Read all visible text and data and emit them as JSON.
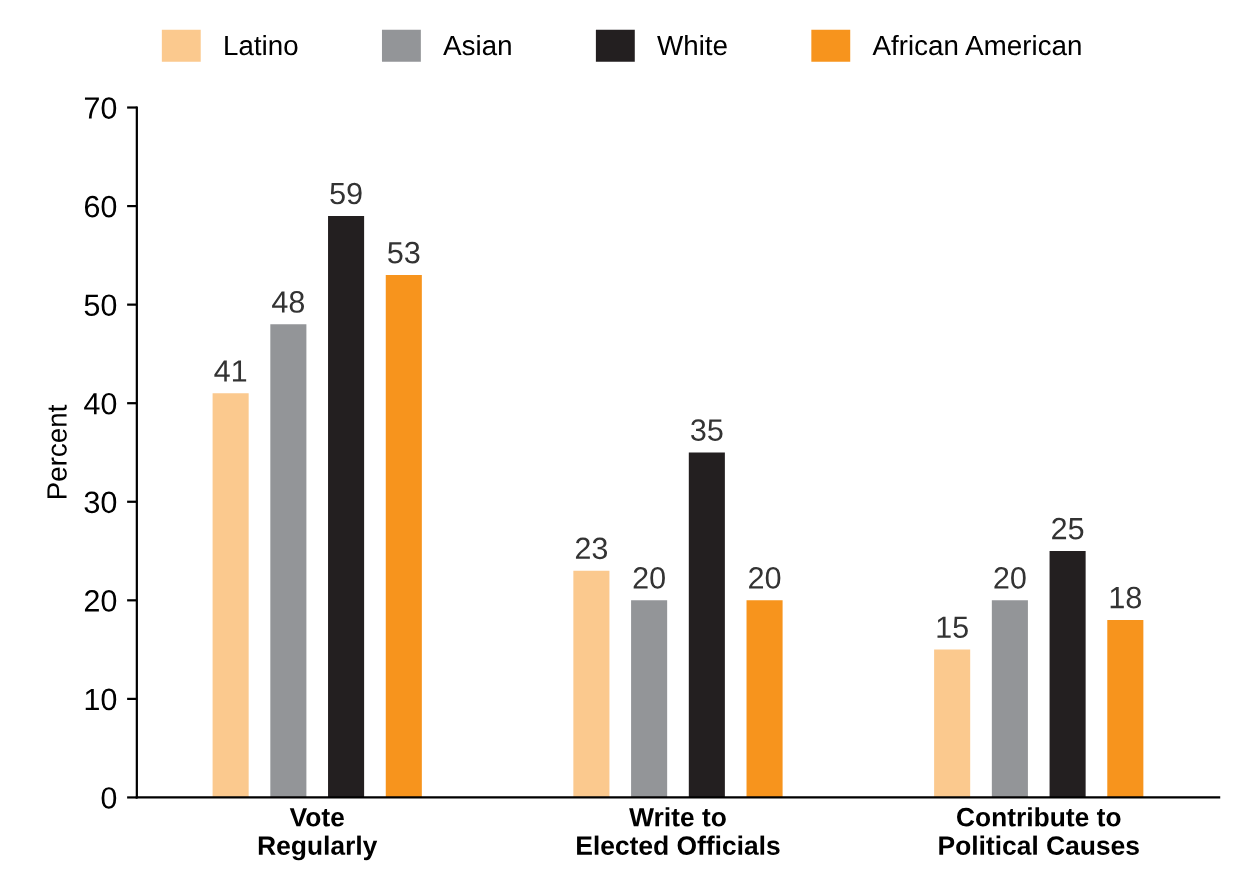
{
  "chart_data": {
    "type": "bar",
    "ylabel": "Percent",
    "categories": [
      "Vote\nRegularly",
      "Write to\nElected Officials",
      "Contribute to\nPolitical Causes"
    ],
    "series": [
      {
        "name": "Latino",
        "color": "#fbc98e",
        "values": [
          41,
          23,
          15
        ]
      },
      {
        "name": "Asian",
        "color": "#939598",
        "values": [
          48,
          20,
          20
        ]
      },
      {
        "name": "White",
        "color": "#231f20",
        "values": [
          59,
          35,
          25
        ]
      },
      {
        "name": "African American",
        "color": "#f7941d",
        "values": [
          53,
          20,
          18
        ]
      }
    ],
    "ylim": [
      0,
      70
    ],
    "yticks": [
      0,
      10,
      20,
      30,
      40,
      50,
      60,
      70
    ],
    "grid": false,
    "legend": "top",
    "data_labels": true
  }
}
